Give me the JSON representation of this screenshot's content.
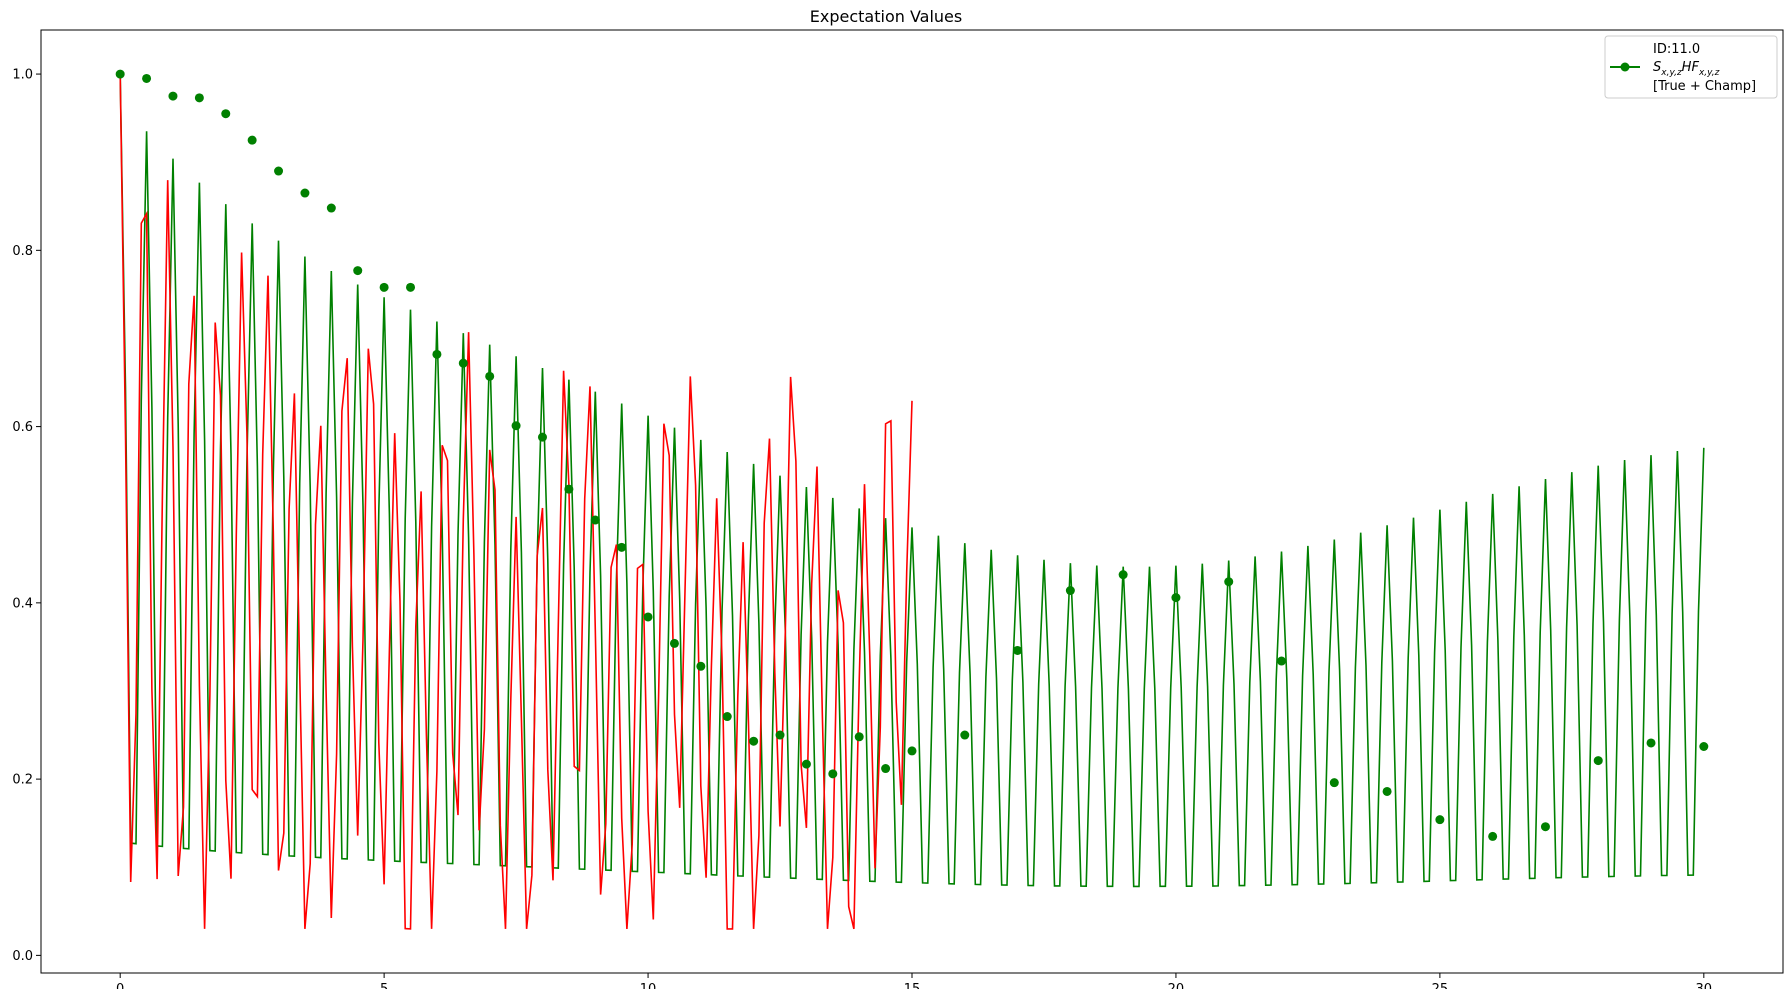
{
  "chart_data": {
    "type": "line",
    "title": "Expectation Values",
    "xlabel": "",
    "ylabel": "",
    "xlim": [
      -1.5,
      31.5
    ],
    "ylim": [
      -0.02,
      1.05
    ],
    "x_ticks": [
      0,
      5,
      10,
      15,
      20,
      25,
      30
    ],
    "y_ticks": [
      0.0,
      0.2,
      0.4,
      0.6,
      0.8,
      1.0
    ],
    "x_tick_labels": [
      "0",
      "5",
      "10",
      "15",
      "20",
      "25",
      "30"
    ],
    "y_tick_labels": [
      "0.0",
      "0.2",
      "0.4",
      "0.6",
      "0.8",
      "1.0"
    ],
    "grid": false,
    "legend": {
      "placement": "top-right",
      "lines": [
        "ID:11.0",
        "S",
        "x,y,z",
        "HF",
        "x,y,z",
        "[True + Champ]"
      ]
    },
    "colors": {
      "green": "#008000",
      "red": "#ff0000"
    },
    "series": [
      {
        "name": "Sx,y,zHFx,y,z [True + Champ]",
        "color": "#008000",
        "line_x_max": 30,
        "line_dt": 0.1,
        "markers": {
          "x": [
            0,
            0.5,
            1,
            1.5,
            2,
            2.5,
            3,
            3.5,
            4,
            4.5,
            5,
            5.5,
            6,
            6.5,
            7,
            7.5,
            8,
            8.5,
            9,
            9.5,
            10,
            10.5,
            11,
            11.5,
            12,
            12.5,
            13,
            13.5,
            14,
            14.5,
            15,
            16,
            17,
            18,
            19,
            20,
            21,
            22,
            23,
            24,
            25,
            26,
            27,
            28,
            29,
            30
          ],
          "y": [
            1.0,
            0.995,
            0.975,
            0.973,
            0.955,
            0.925,
            0.89,
            0.865,
            0.848,
            0.777,
            0.758,
            0.758,
            0.682,
            0.672,
            0.657,
            0.601,
            0.588,
            0.529,
            0.494,
            0.463,
            0.384,
            0.354,
            0.328,
            0.271,
            0.243,
            0.25,
            0.217,
            0.206,
            0.248,
            0.212,
            0.232,
            0.25,
            0.346,
            0.414,
            0.432,
            0.406,
            0.424,
            0.334,
            0.196,
            0.186,
            0.154,
            0.135,
            0.146,
            0.221,
            0.241,
            0.237
          ]
        }
      },
      {
        "name": "",
        "color": "#ff0000",
        "line_x_max": 15,
        "line_dt": 0.1
      }
    ]
  }
}
